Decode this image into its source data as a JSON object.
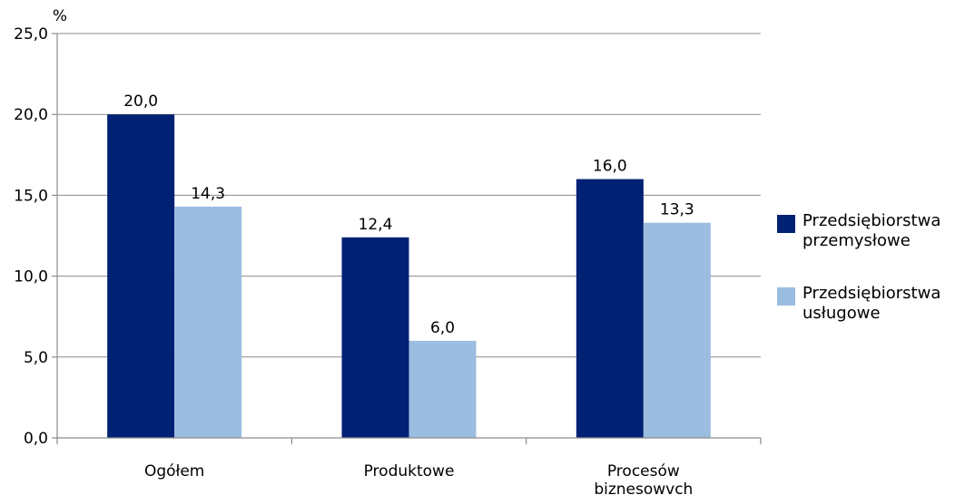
{
  "chart_data": {
    "type": "bar",
    "ylabel": "%",
    "ylim": [
      0,
      25
    ],
    "yticks": [
      "0,0",
      "5,0",
      "10,0",
      "15,0",
      "20,0",
      "25,0"
    ],
    "grid": true,
    "legend_position": "right",
    "categories": [
      [
        "Ogółem"
      ],
      [
        "Produktowe"
      ],
      [
        "Procesów",
        "biznesowvch"
      ]
    ],
    "series": [
      {
        "name": [
          "Przedsiębiorstwa",
          "przemysłowe"
        ],
        "color": "#002174",
        "values": [
          20.0,
          12.4,
          16.0
        ],
        "labels": [
          "20,0",
          "12,4",
          "16,0"
        ]
      },
      {
        "name": [
          "Przedsiębiorstwa",
          "usługowe"
        ],
        "color": "#9bbde0",
        "values": [
          14.3,
          6.0,
          13.3
        ],
        "labels": [
          "14,3",
          "6,0",
          "13,3"
        ]
      }
    ]
  }
}
